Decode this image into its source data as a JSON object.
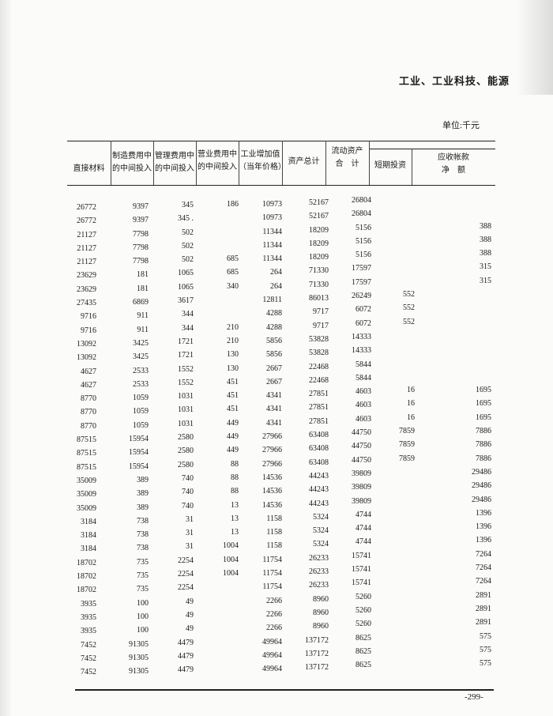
{
  "section_title": "工业、工业科技、能源",
  "unit": "单位:千元",
  "headers": {
    "direct_materials": "直接材料",
    "mfg_expense_input": [
      "制造费用中",
      "的中间投入"
    ],
    "admin_expense_input": [
      "管理费用中",
      "的中间投入"
    ],
    "sales_expense_input": [
      "营业费用中",
      "的中间投入"
    ],
    "industrial_value_added": [
      "工业增加值",
      "（当年价格）"
    ],
    "total_assets": "资产总计",
    "current_assets": [
      "流动资产",
      "合　计"
    ],
    "short_term_investment": "短期投资",
    "accounts_receivable": [
      "应收帐款",
      "净　额"
    ]
  },
  "columns": {
    "direct_materials": [
      "26772",
      "26772",
      "21127",
      "21127",
      "21127",
      "23629",
      "23629",
      "27435",
      "9716",
      "9716",
      "13092",
      "13092",
      "4627",
      "4627",
      "8770",
      "8770",
      "8770",
      "87515",
      "87515",
      "87515",
      "35009",
      "35009",
      "35009",
      "3184",
      "3184",
      "3184",
      "18702",
      "18702",
      "18702",
      "3935",
      "3935",
      "3935",
      "7452",
      "7452",
      "7452"
    ],
    "mfg_expense_input": [
      "9397",
      "9397",
      "7798",
      "7798",
      "7798",
      "181",
      "181",
      "6869",
      "911",
      "911",
      "3425",
      "3425",
      "2533",
      "2533",
      "1059",
      "1059",
      "1059",
      "15954",
      "15954",
      "15954",
      "389",
      "389",
      "389",
      "738",
      "738",
      "738",
      "735",
      "735",
      "735",
      "100",
      "100",
      "100",
      "91305",
      "91305",
      "91305"
    ],
    "admin_expense_input": [
      "345",
      "345 .",
      "502",
      "502",
      "502",
      "1065",
      "1065",
      "3617",
      "344",
      "344",
      "1721",
      "1721",
      "1552",
      "1552",
      "1031",
      "1031",
      "1031",
      "2580",
      "2580",
      "2580",
      "740",
      "740",
      "740",
      "31",
      "31",
      "31",
      "2254",
      "2254",
      "2254",
      "49",
      "49",
      "49",
      "4479",
      "4479",
      "4479"
    ],
    "sales_expense_input": [
      "186",
      "",
      "",
      "",
      "685",
      "685",
      "340",
      "",
      "",
      "210",
      "210",
      "130",
      "130",
      "451",
      "451",
      "451",
      "449",
      "449",
      "449",
      "88",
      "88",
      "88",
      "13",
      "13",
      "13",
      "1004",
      "1004",
      "1004",
      "",
      "",
      "",
      "",
      "",
      "",
      ""
    ],
    "industrial_value_added": [
      "10973",
      "10973",
      "11344",
      "11344",
      "11344",
      "264",
      "264",
      "12811",
      "4288",
      "4288",
      "5856",
      "5856",
      "2667",
      "2667",
      "4341",
      "4341",
      "4341",
      "27966",
      "27966",
      "27966",
      "14536",
      "14536",
      "14536",
      "1158",
      "1158",
      "1158",
      "11754",
      "11754",
      "11754",
      "2266",
      "2266",
      "2266",
      "49964",
      "49964",
      "49964"
    ],
    "total_assets": [
      "52167",
      "52167",
      "18209",
      "18209",
      "18209",
      "71330",
      "71330",
      "86013",
      "9717",
      "9717",
      "53828",
      "53828",
      "22468",
      "22468",
      "27851",
      "27851",
      "27851",
      "63408",
      "63408",
      "63408",
      "44243",
      "44243",
      "44243",
      "5324",
      "5324",
      "5324",
      "26233",
      "26233",
      "26233",
      "8960",
      "8960",
      "8960",
      "137172",
      "137172",
      "137172"
    ],
    "current_assets": [
      "26804",
      "26804",
      "5156",
      "5156",
      "5156",
      "17597",
      "17597",
      "26249",
      "6072",
      "6072",
      "14333",
      "14333",
      "5844",
      "5844",
      "4603",
      "4603",
      "4603",
      "44750",
      "44750",
      "44750",
      "39809",
      "39809",
      "39809",
      "4744",
      "4744",
      "4744",
      "15741",
      "15741",
      "15741",
      "5260",
      "5260",
      "5260",
      "8625",
      "8625",
      "8625"
    ],
    "short_term_investment": [
      "",
      "",
      "",
      "",
      "",
      "",
      "",
      "552",
      "552",
      "552",
      "",
      "",
      "",
      "",
      "16",
      "16",
      "16",
      "7859",
      "7859",
      "7859",
      "",
      "",
      "",
      "",
      "",
      "",
      "",
      "",
      "",
      "",
      "",
      "",
      "",
      "",
      ""
    ],
    "accounts_receivable": [
      "",
      "",
      "388",
      "388",
      "388",
      "315",
      "315",
      "",
      "",
      "",
      "",
      "",
      "",
      "",
      "1695",
      "1695",
      "1695",
      "7886",
      "7886",
      "7886",
      "29486",
      "29486",
      "29486",
      "1396",
      "1396",
      "1396",
      "7264",
      "7264",
      "7264",
      "2891",
      "2891",
      "2891",
      "575",
      "575",
      "575"
    ]
  },
  "page_number": "-299-"
}
